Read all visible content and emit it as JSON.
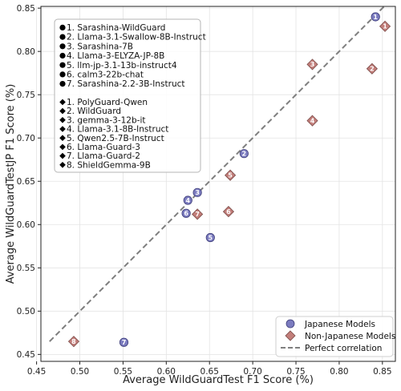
{
  "chart_data": {
    "type": "scatter",
    "title": "",
    "xlabel": "Average WildGuardTest F1 Score (%)",
    "ylabel": "Average WildGuardTestJP F1 Score (%)",
    "xlim": [
      0.455,
      0.865
    ],
    "ylim": [
      0.442,
      0.852
    ],
    "x_ticks": [
      0.45,
      0.5,
      0.55,
      0.6,
      0.65,
      0.7,
      0.75,
      0.8,
      0.85
    ],
    "y_ticks": [
      0.45,
      0.5,
      0.55,
      0.6,
      0.65,
      0.7,
      0.75,
      0.8,
      0.85
    ],
    "grid": true,
    "legend_position": "bottom-right",
    "colors": {
      "japanese": "#7b7bbf",
      "non_japanese": "#c27e7a",
      "perfect_line": "#7f7f7f"
    },
    "series": [
      {
        "name": "Japanese Models",
        "marker": "circle",
        "points": [
          {
            "label": "1",
            "x": 0.842,
            "y": 0.84
          },
          {
            "label": "2",
            "x": 0.69,
            "y": 0.682
          },
          {
            "label": "3",
            "x": 0.636,
            "y": 0.637
          },
          {
            "label": "4",
            "x": 0.625,
            "y": 0.628
          },
          {
            "label": "5",
            "x": 0.651,
            "y": 0.585
          },
          {
            "label": "6",
            "x": 0.623,
            "y": 0.613
          },
          {
            "label": "7",
            "x": 0.551,
            "y": 0.464
          }
        ]
      },
      {
        "name": "Non-Japanese Models",
        "marker": "diamond",
        "points": [
          {
            "label": "1",
            "x": 0.853,
            "y": 0.829
          },
          {
            "label": "2",
            "x": 0.838,
            "y": 0.78
          },
          {
            "label": "3",
            "x": 0.769,
            "y": 0.785
          },
          {
            "label": "4",
            "x": 0.769,
            "y": 0.72
          },
          {
            "label": "5",
            "x": 0.674,
            "y": 0.657
          },
          {
            "label": "6",
            "x": 0.672,
            "y": 0.615
          },
          {
            "label": "7",
            "x": 0.636,
            "y": 0.612
          },
          {
            "label": "8",
            "x": 0.493,
            "y": 0.465
          }
        ]
      },
      {
        "name": "Perfect correlation",
        "type": "line",
        "x": [
          0.465,
          0.852
        ],
        "y": [
          0.465,
          0.852
        ]
      }
    ],
    "model_legend": {
      "japanese": [
        "1. Sarashina-WildGuard",
        "2. Llama-3.1-Swallow-8B-Instruct",
        "3. Sarashina-7B",
        "4. Llama-3-ELYZA-JP-8B",
        "5. llm-jp-3.1-13b-instruct4",
        "6. calm3-22b-chat",
        "7. Sarashina-2.2-3B-Instruct"
      ],
      "non_japanese": [
        "1. PolyGuard-Qwen",
        "2. WildGuard",
        "3. gemma-3-12b-it",
        "4. Llama-3.1-8B-Instruct",
        "5. Qwen2.5-7B-Instruct",
        "6. Llama-Guard-3",
        "7. Llama-Guard-2",
        "8. ShieldGemma-9B"
      ]
    }
  }
}
